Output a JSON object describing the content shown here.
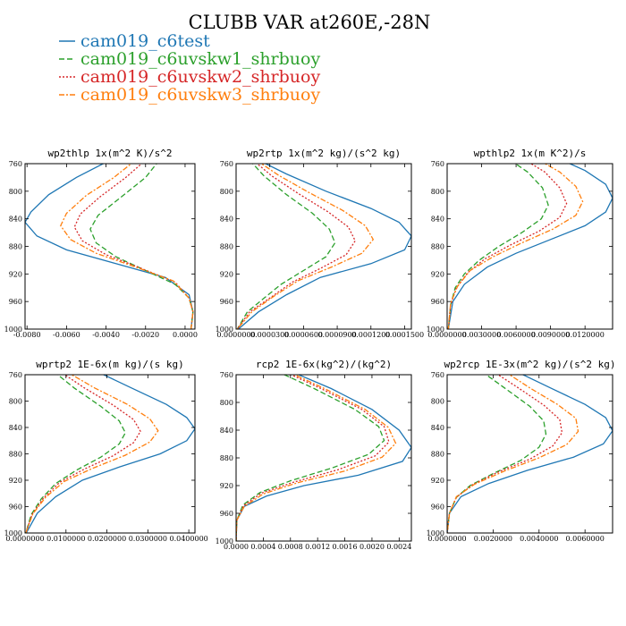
{
  "figure": {
    "title": "CLUBB VAR at260E,-28N"
  },
  "chart_data": [
    {
      "type": "line",
      "title": "wp2thlp   1x(m^2 K)/s^2",
      "xlim": [
        -0.0081,
        0.0005
      ],
      "ylim": [
        760,
        1000
      ],
      "xticks": [
        "-0.0080",
        "-0.0060",
        "-0.0040",
        "-0.0020",
        "0.0000"
      ],
      "yticks": [
        "760",
        "800",
        "840",
        "880",
        "920",
        "960",
        "1000"
      ],
      "series": [
        {
          "name": "cam019_c6test",
          "color": "#1f77b4",
          "dash": "solid",
          "x": [
            -0.0038,
            -0.0055,
            -0.0069,
            -0.0078,
            -0.0081,
            -0.0075,
            -0.006,
            -0.0035,
            -0.001,
            0.0002,
            0.0004,
            0.0003
          ],
          "y": [
            755,
            780,
            805,
            830,
            845,
            865,
            885,
            905,
            925,
            950,
            975,
            1000
          ]
        },
        {
          "name": "cam019_c6uvskw1_shrbuoy",
          "color": "#2ca02c",
          "dash": "6,3",
          "x": [
            -0.0013,
            -0.002,
            -0.0033,
            -0.0044,
            -0.0048,
            -0.0045,
            -0.0035,
            -0.002,
            -0.0005,
            0.0002,
            0.0004,
            0.0003
          ],
          "y": [
            755,
            780,
            810,
            835,
            855,
            875,
            895,
            915,
            935,
            955,
            975,
            1000
          ]
        },
        {
          "name": "cam019_c6uvskw2_shrbuoy",
          "color": "#d62728",
          "dash": "2,2",
          "x": [
            -0.002,
            -0.003,
            -0.0043,
            -0.0053,
            -0.0056,
            -0.0052,
            -0.004,
            -0.0022,
            -0.0005,
            0.0002,
            0.0004,
            0.0003
          ],
          "y": [
            755,
            780,
            808,
            833,
            852,
            872,
            892,
            912,
            932,
            955,
            975,
            1000
          ]
        },
        {
          "name": "cam019_c6uvskw3_shrbuoy",
          "color": "#ff7f0e",
          "dash": "6,2,2,2",
          "x": [
            -0.0025,
            -0.0036,
            -0.005,
            -0.006,
            -0.0063,
            -0.0058,
            -0.0045,
            -0.0025,
            -0.0006,
            0.0002,
            0.0004,
            0.0003
          ],
          "y": [
            755,
            780,
            806,
            832,
            850,
            870,
            890,
            910,
            930,
            955,
            975,
            1000
          ]
        }
      ]
    },
    {
      "type": "line",
      "title": "wp2rtp   1x(m^2 kg)/(s^2 kg)",
      "xlim": [
        0,
        0.000156
      ],
      "ylim": [
        760,
        1000
      ],
      "xticks": [
        "0.0000000",
        "0.0000300",
        "0.0000600",
        "0.0000900",
        "0.0001200",
        "0.0001500"
      ],
      "yticks": [
        "760",
        "800",
        "840",
        "880",
        "920",
        "960",
        "1000"
      ],
      "series": [
        {
          "name": "cam019_c6test",
          "color": "#1f77b4",
          "dash": "solid",
          "x": [
            2e-05,
            4.5e-05,
            8e-05,
            0.00012,
            0.000145,
            0.000156,
            0.00015,
            0.00012,
            7.5e-05,
            4.5e-05,
            2e-05,
            2e-06
          ],
          "y": [
            755,
            775,
            800,
            825,
            845,
            865,
            885,
            905,
            925,
            950,
            975,
            1000
          ]
        },
        {
          "name": "cam019_c6uvskw1_shrbuoy",
          "color": "#2ca02c",
          "dash": "6,3",
          "x": [
            1.2e-05,
            2.5e-05,
            4.5e-05,
            6.8e-05,
            8.3e-05,
            8.8e-05,
            8e-05,
            6e-05,
            4e-05,
            2.5e-05,
            1e-05,
            1e-06
          ],
          "y": [
            755,
            778,
            805,
            832,
            855,
            875,
            895,
            915,
            935,
            955,
            975,
            1000
          ]
        },
        {
          "name": "cam019_c6uvskw2_shrbuoy",
          "color": "#d62728",
          "dash": "2,2",
          "x": [
            1.5e-05,
            3.2e-05,
            5.5e-05,
            8.2e-05,
            0.0001,
            0.000106,
            9.8e-05,
            7.5e-05,
            5e-05,
            3e-05,
            1.2e-05,
            1e-06
          ],
          "y": [
            755,
            778,
            803,
            830,
            852,
            872,
            892,
            912,
            932,
            955,
            975,
            1000
          ]
        },
        {
          "name": "cam019_c6uvskw3_shrbuoy",
          "color": "#ff7f0e",
          "dash": "6,2,2,2",
          "x": [
            1.8e-05,
            3.8e-05,
            6.5e-05,
            9.5e-05,
            0.000115,
            0.000122,
            0.000112,
            8.5e-05,
            5.5e-05,
            3.3e-05,
            1.4e-05,
            1e-06
          ],
          "y": [
            755,
            777,
            802,
            828,
            850,
            870,
            890,
            910,
            930,
            953,
            975,
            1000
          ]
        }
      ]
    },
    {
      "type": "line",
      "title": "wpthlp2   1x(m K^2)/s",
      "xlim": [
        0,
        0.0144
      ],
      "ylim": [
        760,
        1000
      ],
      "xticks": [
        "0.0000000",
        "0.0030000",
        "0.0060000",
        "0.0090000",
        "0.0120000"
      ],
      "yticks": [
        "760",
        "800",
        "840",
        "880",
        "920",
        "960",
        "1000"
      ],
      "series": [
        {
          "name": "cam019_c6test",
          "color": "#1f77b4",
          "dash": "solid",
          "x": [
            0.01,
            0.012,
            0.0138,
            0.0144,
            0.0138,
            0.012,
            0.009,
            0.006,
            0.0035,
            0.0015,
            0.0005,
            0.0001
          ],
          "y": [
            755,
            770,
            790,
            810,
            830,
            850,
            870,
            890,
            910,
            935,
            960,
            1000
          ]
        },
        {
          "name": "cam019_c6uvskw1_shrbuoy",
          "color": "#2ca02c",
          "dash": "6,3",
          "x": [
            0.0055,
            0.007,
            0.0083,
            0.0088,
            0.0082,
            0.0065,
            0.0045,
            0.0028,
            0.0015,
            0.0007,
            0.0003,
            0.0001
          ],
          "y": [
            755,
            772,
            795,
            820,
            840,
            860,
            880,
            900,
            920,
            940,
            965,
            1000
          ]
        },
        {
          "name": "cam019_c6uvskw2_shrbuoy",
          "color": "#d62728",
          "dash": "2,2",
          "x": [
            0.0068,
            0.0085,
            0.0098,
            0.0104,
            0.0098,
            0.008,
            0.0055,
            0.0033,
            0.0018,
            0.0008,
            0.0003,
            0.0001
          ],
          "y": [
            755,
            772,
            795,
            818,
            838,
            858,
            878,
            898,
            918,
            940,
            965,
            1000
          ]
        },
        {
          "name": "cam019_c6uvskw3_shrbuoy",
          "color": "#ff7f0e",
          "dash": "6,2,2,2",
          "x": [
            0.008,
            0.0098,
            0.0112,
            0.0118,
            0.0112,
            0.0092,
            0.0065,
            0.004,
            0.002,
            0.0009,
            0.0003,
            0.0001
          ],
          "y": [
            755,
            772,
            793,
            815,
            835,
            855,
            875,
            895,
            915,
            938,
            962,
            1000
          ]
        }
      ]
    },
    {
      "type": "line",
      "title": "wprtp2   1E-6x(m kg)/(s kg)",
      "xlim": [
        0,
        0.0415
      ],
      "ylim": [
        760,
        1000
      ],
      "xticks": [
        "0.0000000",
        "0.0100000",
        "0.0200000",
        "0.0300000",
        "0.0400000"
      ],
      "yticks": [
        "760",
        "800",
        "840",
        "880",
        "920",
        "960",
        "1000"
      ],
      "series": [
        {
          "name": "cam019_c6test",
          "color": "#1f77b4",
          "dash": "solid",
          "x": [
            0.0175,
            0.026,
            0.0345,
            0.0395,
            0.0415,
            0.0395,
            0.033,
            0.023,
            0.014,
            0.0075,
            0.003,
            0.0003
          ],
          "y": [
            755,
            780,
            805,
            825,
            842,
            860,
            880,
            900,
            920,
            945,
            970,
            1000
          ]
        },
        {
          "name": "cam019_c6uvskw1_shrbuoy",
          "color": "#2ca02c",
          "dash": "6,3",
          "x": [
            0.007,
            0.012,
            0.0185,
            0.023,
            0.0245,
            0.023,
            0.0185,
            0.0125,
            0.0075,
            0.004,
            0.0015,
            0.0002
          ],
          "y": [
            755,
            780,
            808,
            830,
            848,
            865,
            885,
            905,
            925,
            948,
            972,
            1000
          ]
        },
        {
          "name": "cam019_c6uvskw2_shrbuoy",
          "color": "#d62728",
          "dash": "2,2",
          "x": [
            0.0085,
            0.0145,
            0.0215,
            0.0265,
            0.0282,
            0.0265,
            0.0215,
            0.0145,
            0.0085,
            0.0045,
            0.0017,
            0.0002
          ],
          "y": [
            755,
            780,
            806,
            828,
            846,
            863,
            883,
            903,
            923,
            947,
            972,
            1000
          ]
        },
        {
          "name": "cam019_c6uvskw3_shrbuoy",
          "color": "#ff7f0e",
          "dash": "6,2,2,2",
          "x": [
            0.01,
            0.017,
            0.025,
            0.0305,
            0.0325,
            0.0305,
            0.0245,
            0.0165,
            0.0095,
            0.005,
            0.0019,
            0.0002
          ],
          "y": [
            755,
            780,
            805,
            827,
            845,
            862,
            882,
            902,
            922,
            946,
            971,
            1000
          ]
        }
      ]
    },
    {
      "type": "line",
      "title": "rcp2   1E-6x(kg^2)/(kg^2)",
      "xlim": [
        0,
        0.00258
      ],
      "ylim": [
        760,
        1000
      ],
      "xticks": [
        "0.0000",
        "0.0004",
        "0.0008",
        "0.0012",
        "0.0016",
        "0.0020",
        "0.0024"
      ],
      "yticks": [
        "760",
        "800",
        "840",
        "880",
        "920",
        "960",
        "1000"
      ],
      "series": [
        {
          "name": "cam019_c6test",
          "color": "#1f77b4",
          "dash": "solid",
          "x": [
            0.0008,
            0.0014,
            0.002,
            0.0024,
            0.00258,
            0.00245,
            0.0018,
            0.001,
            0.00045,
            0.00012,
            1e-05,
            0.0
          ],
          "y": [
            755,
            780,
            810,
            840,
            865,
            885,
            905,
            920,
            935,
            950,
            970,
            1000
          ]
        },
        {
          "name": "cam019_c6uvskw1_shrbuoy",
          "color": "#2ca02c",
          "dash": "6,3",
          "x": [
            0.0006,
            0.00115,
            0.00175,
            0.0021,
            0.00218,
            0.00195,
            0.0014,
            0.0008,
            0.00035,
            0.0001,
            1e-05,
            0.0
          ],
          "y": [
            755,
            780,
            810,
            835,
            855,
            875,
            895,
            913,
            930,
            948,
            970,
            1000
          ]
        },
        {
          "name": "cam019_c6uvskw2_shrbuoy",
          "color": "#d62728",
          "dash": "2,2",
          "x": [
            0.0007,
            0.00125,
            0.00185,
            0.00218,
            0.00225,
            0.00205,
            0.0015,
            0.00085,
            0.00037,
            0.00011,
            1e-05,
            0.0
          ],
          "y": [
            755,
            780,
            810,
            835,
            857,
            877,
            897,
            915,
            931,
            949,
            970,
            1000
          ]
        },
        {
          "name": "cam019_c6uvskw3_shrbuoy",
          "color": "#ff7f0e",
          "dash": "6,2,2,2",
          "x": [
            0.00075,
            0.0013,
            0.0019,
            0.00224,
            0.00235,
            0.00215,
            0.0016,
            0.0009,
            0.0004,
            0.00012,
            1e-05,
            0.0
          ],
          "y": [
            755,
            780,
            810,
            836,
            859,
            879,
            899,
            916,
            932,
            950,
            970,
            1000
          ]
        }
      ]
    },
    {
      "type": "line",
      "title": "wp2rcp   1E-3x(m^2 kg)/(s^2 kg)",
      "xlim": [
        0,
        0.0072
      ],
      "ylim": [
        760,
        1000
      ],
      "xticks": [
        "0.0000000",
        "0.0020000",
        "0.0040000",
        "0.0060000"
      ],
      "yticks": [
        "760",
        "800",
        "840",
        "880",
        "920",
        "960",
        "1000"
      ],
      "series": [
        {
          "name": "cam019_c6test",
          "color": "#1f77b4",
          "dash": "solid",
          "x": [
            0.003,
            0.0045,
            0.006,
            0.0069,
            0.0072,
            0.0068,
            0.0055,
            0.0035,
            0.0018,
            0.0006,
            0.0001,
            0.0
          ],
          "y": [
            755,
            780,
            805,
            825,
            845,
            865,
            885,
            905,
            925,
            945,
            970,
            1000
          ]
        },
        {
          "name": "cam019_c6uvskw1_shrbuoy",
          "color": "#2ca02c",
          "dash": "6,3",
          "x": [
            0.0015,
            0.0025,
            0.0036,
            0.0042,
            0.0043,
            0.004,
            0.0032,
            0.002,
            0.001,
            0.0004,
            0.0001,
            0.0
          ],
          "y": [
            755,
            780,
            808,
            830,
            850,
            870,
            890,
            910,
            928,
            946,
            970,
            1000
          ]
        },
        {
          "name": "cam019_c6uvskw2_shrbuoy",
          "color": "#d62728",
          "dash": "2,2",
          "x": [
            0.002,
            0.0031,
            0.0042,
            0.0049,
            0.005,
            0.0046,
            0.0036,
            0.0022,
            0.0011,
            0.0004,
            0.0001,
            0.0
          ],
          "y": [
            755,
            780,
            806,
            828,
            848,
            868,
            888,
            908,
            927,
            946,
            970,
            1000
          ]
        },
        {
          "name": "cam019_c6uvskw3_shrbuoy",
          "color": "#ff7f0e",
          "dash": "6,2,2,2",
          "x": [
            0.0025,
            0.0036,
            0.0048,
            0.0056,
            0.0057,
            0.0052,
            0.004,
            0.0025,
            0.0012,
            0.0004,
            0.0001,
            0.0
          ],
          "y": [
            755,
            780,
            805,
            826,
            846,
            866,
            886,
            906,
            926,
            945,
            970,
            1000
          ]
        }
      ]
    }
  ]
}
